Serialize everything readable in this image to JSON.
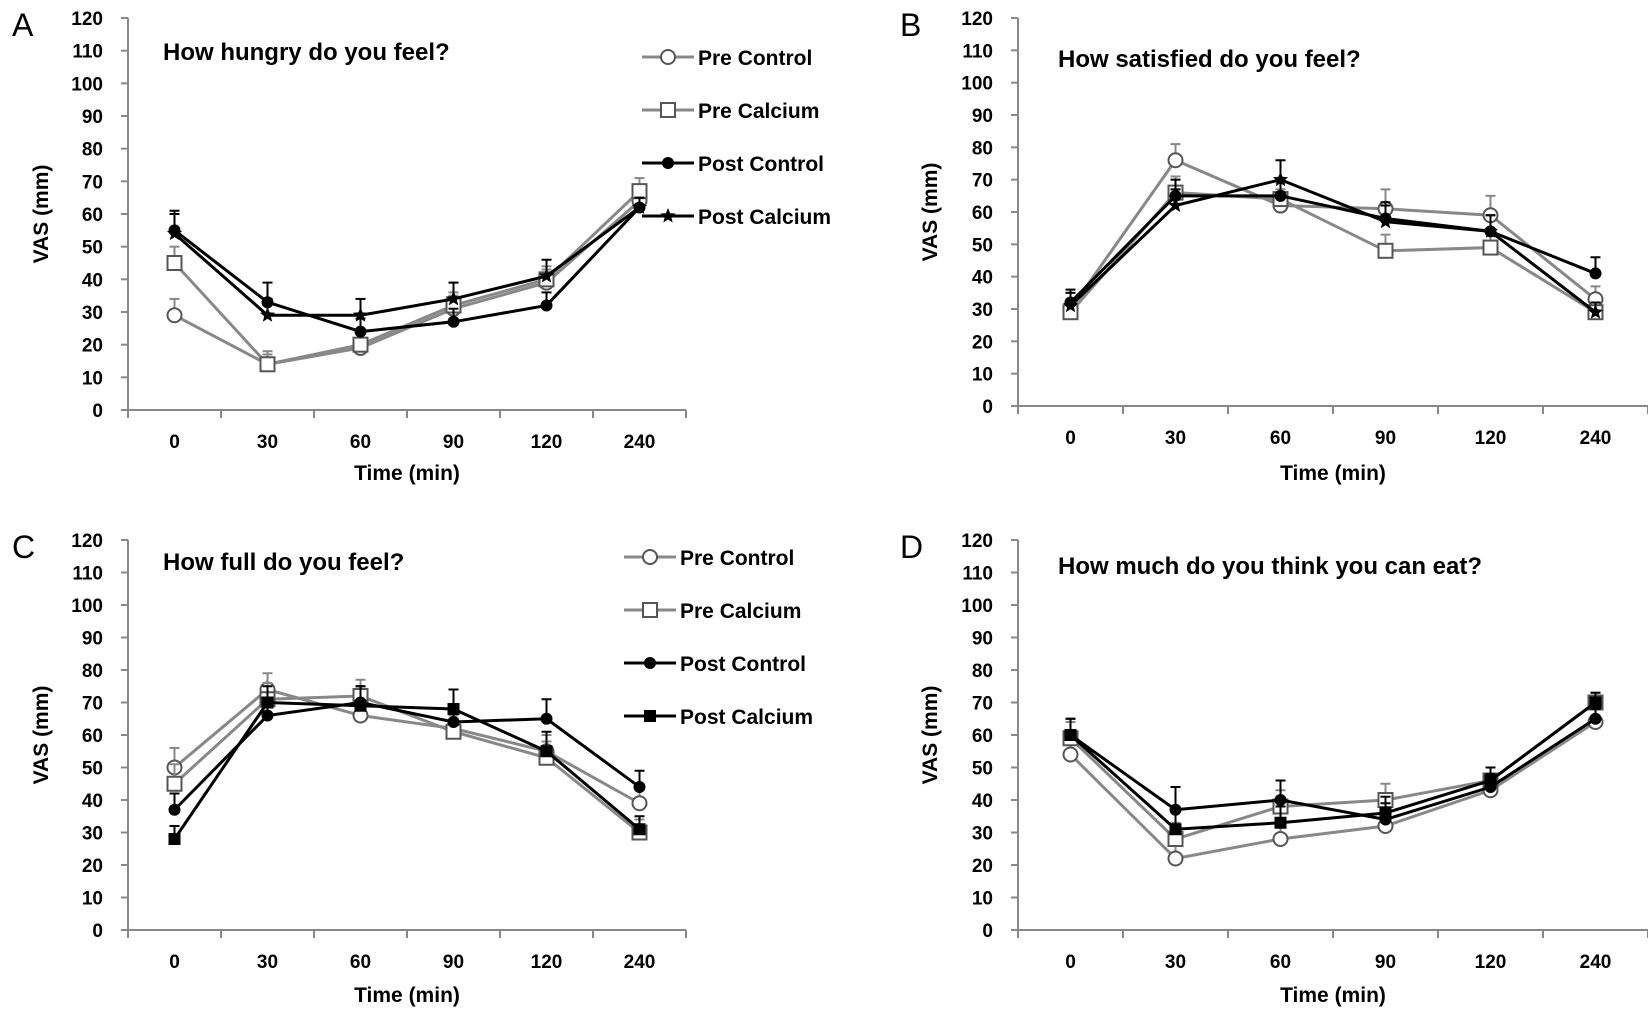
{
  "chart_data": [
    {
      "panel": "A",
      "type": "line",
      "title": "How hungry do you feel?",
      "xlabel": "Time (min)",
      "ylabel": "VAS (mm)",
      "categories": [
        "0",
        "30",
        "60",
        "90",
        "120",
        "240"
      ],
      "yticks": [
        "0",
        "10",
        "20",
        "30",
        "40",
        "50",
        "60",
        "70",
        "80",
        "90",
        "100",
        "110",
        "120"
      ],
      "ylim": [
        0,
        120
      ],
      "legend_position": "top-right",
      "series": [
        {
          "name": "Pre Control",
          "values": [
            29,
            14,
            19,
            31,
            39,
            64
          ],
          "err": [
            5,
            3,
            3,
            4,
            4,
            4
          ],
          "color": "#888888",
          "marker": "open-circle"
        },
        {
          "name": "Pre Calcium",
          "values": [
            45,
            14,
            20,
            32,
            40,
            67
          ],
          "err": [
            5,
            4,
            4,
            4,
            4,
            4
          ],
          "color": "#888888",
          "marker": "open-square"
        },
        {
          "name": "Post Control",
          "values": [
            55,
            33,
            24,
            27,
            32,
            62
          ],
          "err": [
            6,
            6,
            4,
            4,
            4,
            3
          ],
          "color": "#000000",
          "marker": "filled-circle"
        },
        {
          "name": "Post Calcium",
          "values": [
            54,
            29,
            29,
            34,
            41,
            62
          ],
          "err": [
            6,
            5,
            5,
            5,
            5,
            3
          ],
          "color": "#000000",
          "marker": "star"
        }
      ]
    },
    {
      "panel": "B",
      "type": "line",
      "title": "How satisfied do you feel?",
      "xlabel": "Time (min)",
      "ylabel": "VAS (mm)",
      "categories": [
        "0",
        "30",
        "60",
        "90",
        "120",
        "240"
      ],
      "yticks": [
        "0",
        "10",
        "20",
        "30",
        "40",
        "50",
        "60",
        "70",
        "80",
        "90",
        "100",
        "110",
        "120"
      ],
      "ylim": [
        0,
        120
      ],
      "series": [
        {
          "name": "Pre Control",
          "values": [
            30,
            76,
            62,
            61,
            59,
            33
          ],
          "err": [
            3,
            5,
            5,
            6,
            6,
            4
          ],
          "color": "#888888",
          "marker": "open-circle"
        },
        {
          "name": "Pre Calcium",
          "values": [
            29,
            66,
            64,
            48,
            49,
            29
          ],
          "err": [
            3,
            5,
            5,
            5,
            5,
            3
          ],
          "color": "#888888",
          "marker": "open-square"
        },
        {
          "name": "Post Control",
          "values": [
            32,
            65,
            65,
            58,
            54,
            41
          ],
          "err": [
            4,
            5,
            5,
            5,
            5,
            5
          ],
          "color": "#000000",
          "marker": "filled-circle"
        },
        {
          "name": "Post Calcium",
          "values": [
            31,
            62,
            70,
            57,
            54,
            29
          ],
          "err": [
            4,
            5,
            6,
            5,
            5,
            3
          ],
          "color": "#000000",
          "marker": "star"
        }
      ]
    },
    {
      "panel": "C",
      "type": "line",
      "title": "How full do you feel?",
      "xlabel": "Time (min)",
      "ylabel": "VAS (mm)",
      "categories": [
        "0",
        "30",
        "60",
        "90",
        "120",
        "240"
      ],
      "yticks": [
        "0",
        "10",
        "20",
        "30",
        "40",
        "50",
        "60",
        "70",
        "80",
        "90",
        "100",
        "110",
        "120"
      ],
      "ylim": [
        0,
        120
      ],
      "legend_position": "top-right",
      "series": [
        {
          "name": "Pre Control",
          "values": [
            50,
            74,
            66,
            62,
            55,
            39
          ],
          "err": [
            6,
            5,
            5,
            5,
            5,
            5
          ],
          "color": "#888888",
          "marker": "open-circle"
        },
        {
          "name": "Pre Calcium",
          "values": [
            45,
            71,
            72,
            61,
            53,
            30
          ],
          "err": [
            6,
            5,
            5,
            5,
            5,
            4
          ],
          "color": "#888888",
          "marker": "open-square"
        },
        {
          "name": "Post Control",
          "values": [
            37,
            66,
            70,
            64,
            65,
            44
          ],
          "err": [
            5,
            5,
            5,
            5,
            6,
            5
          ],
          "color": "#000000",
          "marker": "filled-circle"
        },
        {
          "name": "Post Calcium",
          "values": [
            28,
            70,
            69,
            68,
            55,
            31
          ],
          "err": [
            4,
            5,
            6,
            6,
            6,
            4
          ],
          "color": "#000000",
          "marker": "filled-square"
        }
      ]
    },
    {
      "panel": "D",
      "type": "line",
      "title": "How much do you think you can eat?",
      "xlabel": "Time (min)",
      "ylabel": "VAS (mm)",
      "categories": [
        "0",
        "30",
        "60",
        "90",
        "120",
        "240"
      ],
      "yticks": [
        "0",
        "10",
        "20",
        "30",
        "40",
        "50",
        "60",
        "70",
        "80",
        "90",
        "100",
        "110",
        "120"
      ],
      "ylim": [
        0,
        120
      ],
      "series": [
        {
          "name": "Pre Control",
          "values": [
            54,
            22,
            28,
            32,
            43,
            64
          ],
          "err": [
            4,
            4,
            4,
            4,
            4,
            4
          ],
          "color": "#888888",
          "marker": "open-circle"
        },
        {
          "name": "Pre Calcium",
          "values": [
            59,
            28,
            38,
            40,
            46,
            70
          ],
          "err": [
            5,
            5,
            5,
            5,
            4,
            3
          ],
          "color": "#888888",
          "marker": "open-square"
        },
        {
          "name": "Post Control",
          "values": [
            60,
            37,
            40,
            34,
            44,
            65
          ],
          "err": [
            5,
            7,
            6,
            5,
            4,
            3
          ],
          "color": "#000000",
          "marker": "filled-circle"
        },
        {
          "name": "Post Calcium",
          "values": [
            60,
            31,
            33,
            36,
            46,
            70
          ],
          "err": [
            5,
            6,
            5,
            5,
            4,
            3
          ],
          "color": "#000000",
          "marker": "filled-square"
        }
      ]
    }
  ]
}
